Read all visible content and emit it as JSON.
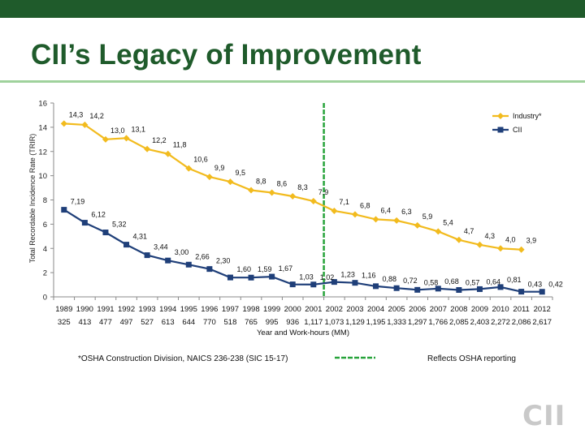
{
  "slide": {
    "title": "CII’s Legacy of Improvement",
    "logo": "CII",
    "colors": {
      "topbar": "#1f5b2b",
      "title": "#1f5b2b",
      "rule": "#9fd29c",
      "logo": "#c9c9c9"
    }
  },
  "chart_data": {
    "type": "line",
    "ylabel": "Total Recordable Incidence Rate (TRIR)",
    "xlabel": "Year and Work-hours (MM)",
    "ylim": [
      0,
      16
    ],
    "yticks": [
      0,
      2,
      4,
      6,
      8,
      10,
      12,
      14,
      16
    ],
    "categories": [
      "1989",
      "1990",
      "1991",
      "1992",
      "1993",
      "1994",
      "1995",
      "1996",
      "1997",
      "1998",
      "1999",
      "2000",
      "2001",
      "2002",
      "2003",
      "2004",
      "2005",
      "2006",
      "2007",
      "2008",
      "2009",
      "2010",
      "2011",
      "2012"
    ],
    "work_hours": [
      "325",
      "413",
      "477",
      "497",
      "527",
      "613",
      "644",
      "770",
      "518",
      "765",
      "995",
      "936",
      "1,117",
      "1,073",
      "1,129",
      "1,195",
      "1,333",
      "1,297",
      "1,766",
      "2,085",
      "2,403",
      "2,272",
      "2,086",
      "2,617"
    ],
    "legend_position": "top-right",
    "grid": false,
    "series": [
      {
        "name": "Industry*",
        "color": "#f2bb1e",
        "marker": "diamond",
        "values": [
          14.3,
          14.2,
          13.0,
          13.1,
          12.2,
          11.8,
          10.6,
          9.9,
          9.5,
          8.8,
          8.6,
          8.3,
          7.9,
          7.1,
          6.8,
          6.4,
          6.3,
          5.9,
          5.4,
          4.7,
          4.3,
          4.0,
          3.9,
          null
        ],
        "labels": [
          "14,3",
          "14,2",
          "13,0",
          "13,1",
          "12,2",
          "11,8",
          "10,6",
          "9,9",
          "9,5",
          "8,8",
          "8,6",
          "8,3",
          "7,9",
          "7,1",
          "6,8",
          "6,4",
          "6,3",
          "5,9",
          "5,4",
          "4,7",
          "4,3",
          "4,0",
          "3,9",
          ""
        ]
      },
      {
        "name": "CII",
        "color": "#1f3f79",
        "marker": "square",
        "values": [
          7.19,
          6.12,
          5.32,
          4.31,
          3.44,
          3.0,
          2.66,
          2.3,
          1.6,
          1.59,
          1.67,
          1.03,
          1.02,
          1.23,
          1.16,
          0.88,
          0.72,
          0.58,
          0.68,
          0.57,
          0.64,
          0.81,
          0.43,
          0.42
        ],
        "labels": [
          "7,19",
          "6,12",
          "5,32",
          "4,31",
          "3,44",
          "3,00",
          "2,66",
          "2,30",
          "1,60",
          "1,59",
          "1,67",
          "1,03",
          "1,02",
          "1,23",
          "1,16",
          "0,88",
          "0,72",
          "0,58",
          "0,68",
          "0,57",
          "0,64",
          "0,81",
          "0,43",
          "0,42"
        ]
      }
    ],
    "reference_line": {
      "category": "2001",
      "color": "#27a33a",
      "style": "dashed"
    },
    "footnote": "*OSHA Construction Division, NAICS 236-238 (SIC 15-17)",
    "note": "Reflects OSHA reporting"
  }
}
